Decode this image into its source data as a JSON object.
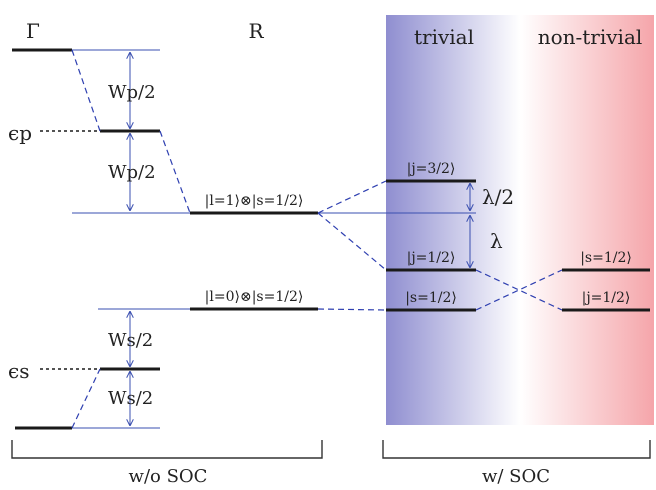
{
  "columns": {
    "gamma": "Γ",
    "r": "R",
    "trivial": "trivial",
    "nontrivial": "non-trivial"
  },
  "energies": {
    "eps_p": "ϵp",
    "eps_s": "ϵs"
  },
  "widths": {
    "wp_top": "Wp/2",
    "wp_bottom": "Wp/2",
    "ws_top": "Ws/2",
    "ws_bottom": "Ws/2"
  },
  "states": {
    "r_p": "|l=1⟩⊗|s=1/2⟩",
    "r_s": "|l=0⟩⊗|s=1/2⟩",
    "triv_j32": "|j=3/2⟩",
    "triv_j12": "|j=1/2⟩",
    "triv_s12": "|s=1/2⟩",
    "nontriv_s12": "|s=1/2⟩",
    "nontriv_j12": "|j=1/2⟩"
  },
  "splittings": {
    "half_lambda": "λ/2",
    "lambda": "λ"
  },
  "groups": {
    "without_soc": "w/o SOC",
    "with_soc": "w/ SOC"
  },
  "colors": {
    "trivial_bg": "#8f8ed0",
    "nontrivial_bg": "#f5a5aa",
    "guide_line": "#3a4fb0"
  }
}
